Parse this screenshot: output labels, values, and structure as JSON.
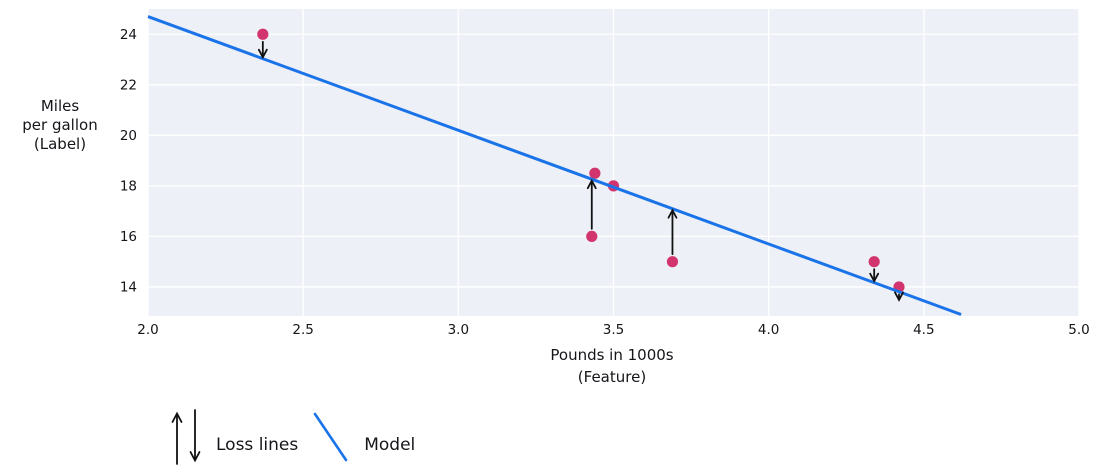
{
  "figure": {
    "ylabel_lines": [
      "Miles",
      "per gallon",
      "(Label)"
    ],
    "xlabel_lines": [
      "Pounds in 1000s",
      "(Feature)"
    ]
  },
  "legend": {
    "loss_label": "Loss lines",
    "model_label": "Model"
  },
  "chart_data": {
    "type": "scatter",
    "title": "",
    "xlabel": "Pounds in 1000s (Feature)",
    "ylabel": "Miles per gallon (Label)",
    "xlim": [
      2.0,
      5.0
    ],
    "ylim": [
      12.85,
      25.0
    ],
    "x_tick_values": [
      2.0,
      2.5,
      3.0,
      3.5,
      4.0,
      4.5,
      5.0
    ],
    "x_tick_labels": [
      "2.0",
      "2.5",
      "3.0",
      "3.5",
      "4.0",
      "4.5",
      "5.0"
    ],
    "y_tick_values": [
      24,
      22,
      20,
      18,
      16,
      14
    ],
    "y_tick_labels": [
      "24",
      "22",
      "20",
      "18",
      "16",
      "14"
    ],
    "grid": true,
    "points": [
      {
        "x": 2.37,
        "y": 24,
        "loss_arrow": "down"
      },
      {
        "x": 3.44,
        "y": 18.5,
        "loss_arrow": null
      },
      {
        "x": 3.5,
        "y": 18,
        "loss_arrow": null
      },
      {
        "x": 3.43,
        "y": 16,
        "loss_arrow": "up"
      },
      {
        "x": 3.69,
        "y": 15,
        "loss_arrow": "up"
      },
      {
        "x": 4.34,
        "y": 15,
        "loss_arrow": "down"
      },
      {
        "x": 4.42,
        "y": 14,
        "loss_arrow": "down"
      }
    ],
    "model_line": {
      "slope": -4.5,
      "intercept": 33.7,
      "x_start": 2.0,
      "x_end": 4.62
    },
    "legend_entries": [
      {
        "symbol": "loss-arrows",
        "label": "Loss lines"
      },
      {
        "symbol": "model-line",
        "label": "Model"
      }
    ],
    "legend_position": "bottom-left",
    "colors": {
      "point": "#d2356d",
      "model_line": "#1a73e8",
      "plot_bg": "#edf0f7",
      "grid": "#ffffff",
      "arrow": "#111111",
      "text": "#15151a"
    }
  }
}
